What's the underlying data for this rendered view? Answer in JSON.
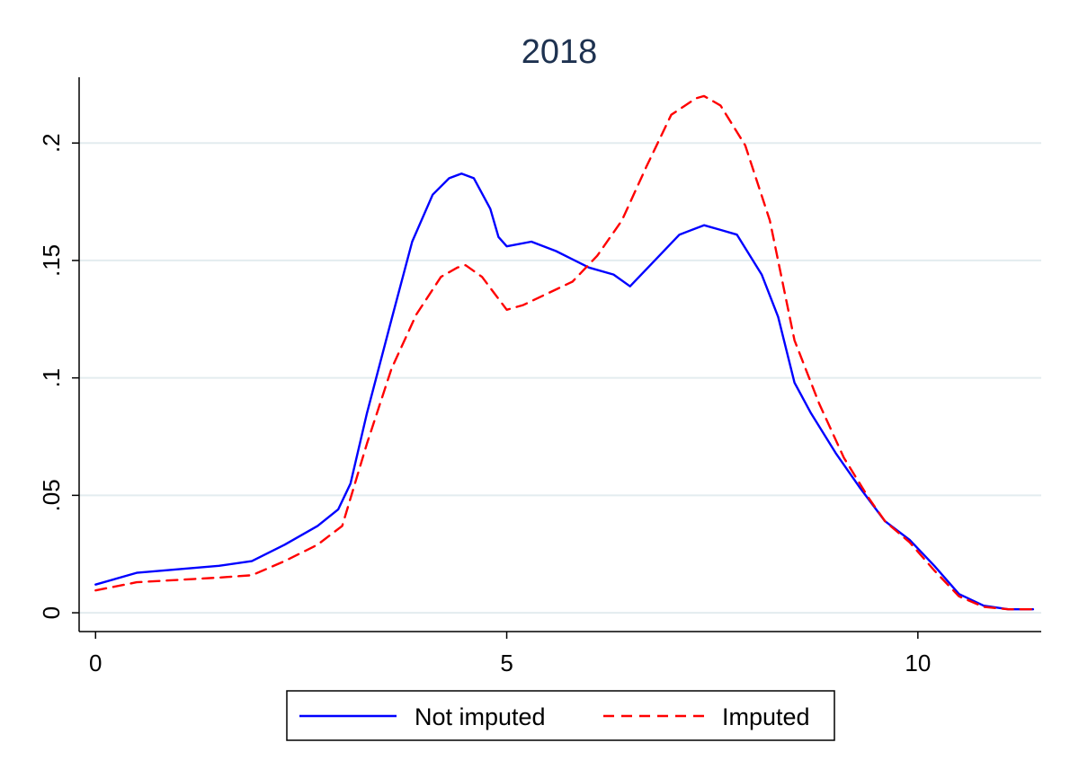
{
  "chart_data": {
    "type": "line",
    "title": "2018",
    "xlabel": "",
    "ylabel": "",
    "xlim": [
      -0.2,
      11.5
    ],
    "ylim": [
      -0.008,
      0.228
    ],
    "x_ticks": [
      0,
      5,
      10
    ],
    "x_tick_labels": [
      "0",
      "5",
      "10"
    ],
    "y_ticks": [
      0,
      0.05,
      0.1,
      0.15,
      0.2
    ],
    "y_tick_labels": [
      "0",
      ".05",
      ".1",
      ".15",
      ".2"
    ],
    "grid": true,
    "legend_position": "bottom",
    "series": [
      {
        "name": "Not imputed",
        "color": "#0000ff",
        "dash": "solid",
        "points": [
          [
            0,
            0.012
          ],
          [
            0.5,
            0.017
          ],
          [
            1,
            0.0185
          ],
          [
            1.5,
            0.02
          ],
          [
            1.9,
            0.022
          ],
          [
            2.3,
            0.029
          ],
          [
            2.7,
            0.037
          ],
          [
            2.95,
            0.044
          ],
          [
            3.1,
            0.055
          ],
          [
            3.3,
            0.085
          ],
          [
            3.6,
            0.125
          ],
          [
            3.85,
            0.158
          ],
          [
            4.1,
            0.178
          ],
          [
            4.3,
            0.185
          ],
          [
            4.45,
            0.187
          ],
          [
            4.6,
            0.185
          ],
          [
            4.8,
            0.172
          ],
          [
            4.9,
            0.16
          ],
          [
            5,
            0.156
          ],
          [
            5.3,
            0.158
          ],
          [
            5.6,
            0.154
          ],
          [
            6,
            0.147
          ],
          [
            6.3,
            0.144
          ],
          [
            6.5,
            0.139
          ],
          [
            6.8,
            0.15
          ],
          [
            7.1,
            0.161
          ],
          [
            7.4,
            0.165
          ],
          [
            7.6,
            0.163
          ],
          [
            7.8,
            0.161
          ],
          [
            8.1,
            0.144
          ],
          [
            8.3,
            0.126
          ],
          [
            8.5,
            0.098
          ],
          [
            8.7,
            0.085
          ],
          [
            9,
            0.068
          ],
          [
            9.3,
            0.053
          ],
          [
            9.6,
            0.039
          ],
          [
            9.9,
            0.031
          ],
          [
            10.2,
            0.02
          ],
          [
            10.5,
            0.008
          ],
          [
            10.8,
            0.003
          ],
          [
            11.1,
            0.0015
          ],
          [
            11.4,
            0.0015
          ]
        ]
      },
      {
        "name": "Imputed",
        "color": "#ff0000",
        "dash": "dashed",
        "points": [
          [
            0,
            0.0095
          ],
          [
            0.5,
            0.013
          ],
          [
            1,
            0.014
          ],
          [
            1.5,
            0.015
          ],
          [
            1.9,
            0.016
          ],
          [
            2.3,
            0.022
          ],
          [
            2.7,
            0.029
          ],
          [
            3,
            0.037
          ],
          [
            3.3,
            0.072
          ],
          [
            3.6,
            0.104
          ],
          [
            3.9,
            0.127
          ],
          [
            4.2,
            0.143
          ],
          [
            4.4,
            0.147
          ],
          [
            4.5,
            0.148
          ],
          [
            4.7,
            0.143
          ],
          [
            4.85,
            0.136
          ],
          [
            5,
            0.129
          ],
          [
            5.2,
            0.131
          ],
          [
            5.5,
            0.136
          ],
          [
            5.8,
            0.141
          ],
          [
            6.1,
            0.152
          ],
          [
            6.4,
            0.167
          ],
          [
            6.7,
            0.19
          ],
          [
            7,
            0.212
          ],
          [
            7.3,
            0.219
          ],
          [
            7.4,
            0.22
          ],
          [
            7.6,
            0.216
          ],
          [
            7.9,
            0.199
          ],
          [
            8.2,
            0.167
          ],
          [
            8.5,
            0.116
          ],
          [
            8.8,
            0.089
          ],
          [
            9.1,
            0.066
          ],
          [
            9.4,
            0.049
          ],
          [
            9.6,
            0.039
          ],
          [
            9.9,
            0.03
          ],
          [
            10.2,
            0.018
          ],
          [
            10.5,
            0.007
          ],
          [
            10.8,
            0.0025
          ],
          [
            11.1,
            0.0015
          ],
          [
            11.4,
            0.0015
          ]
        ]
      }
    ]
  }
}
